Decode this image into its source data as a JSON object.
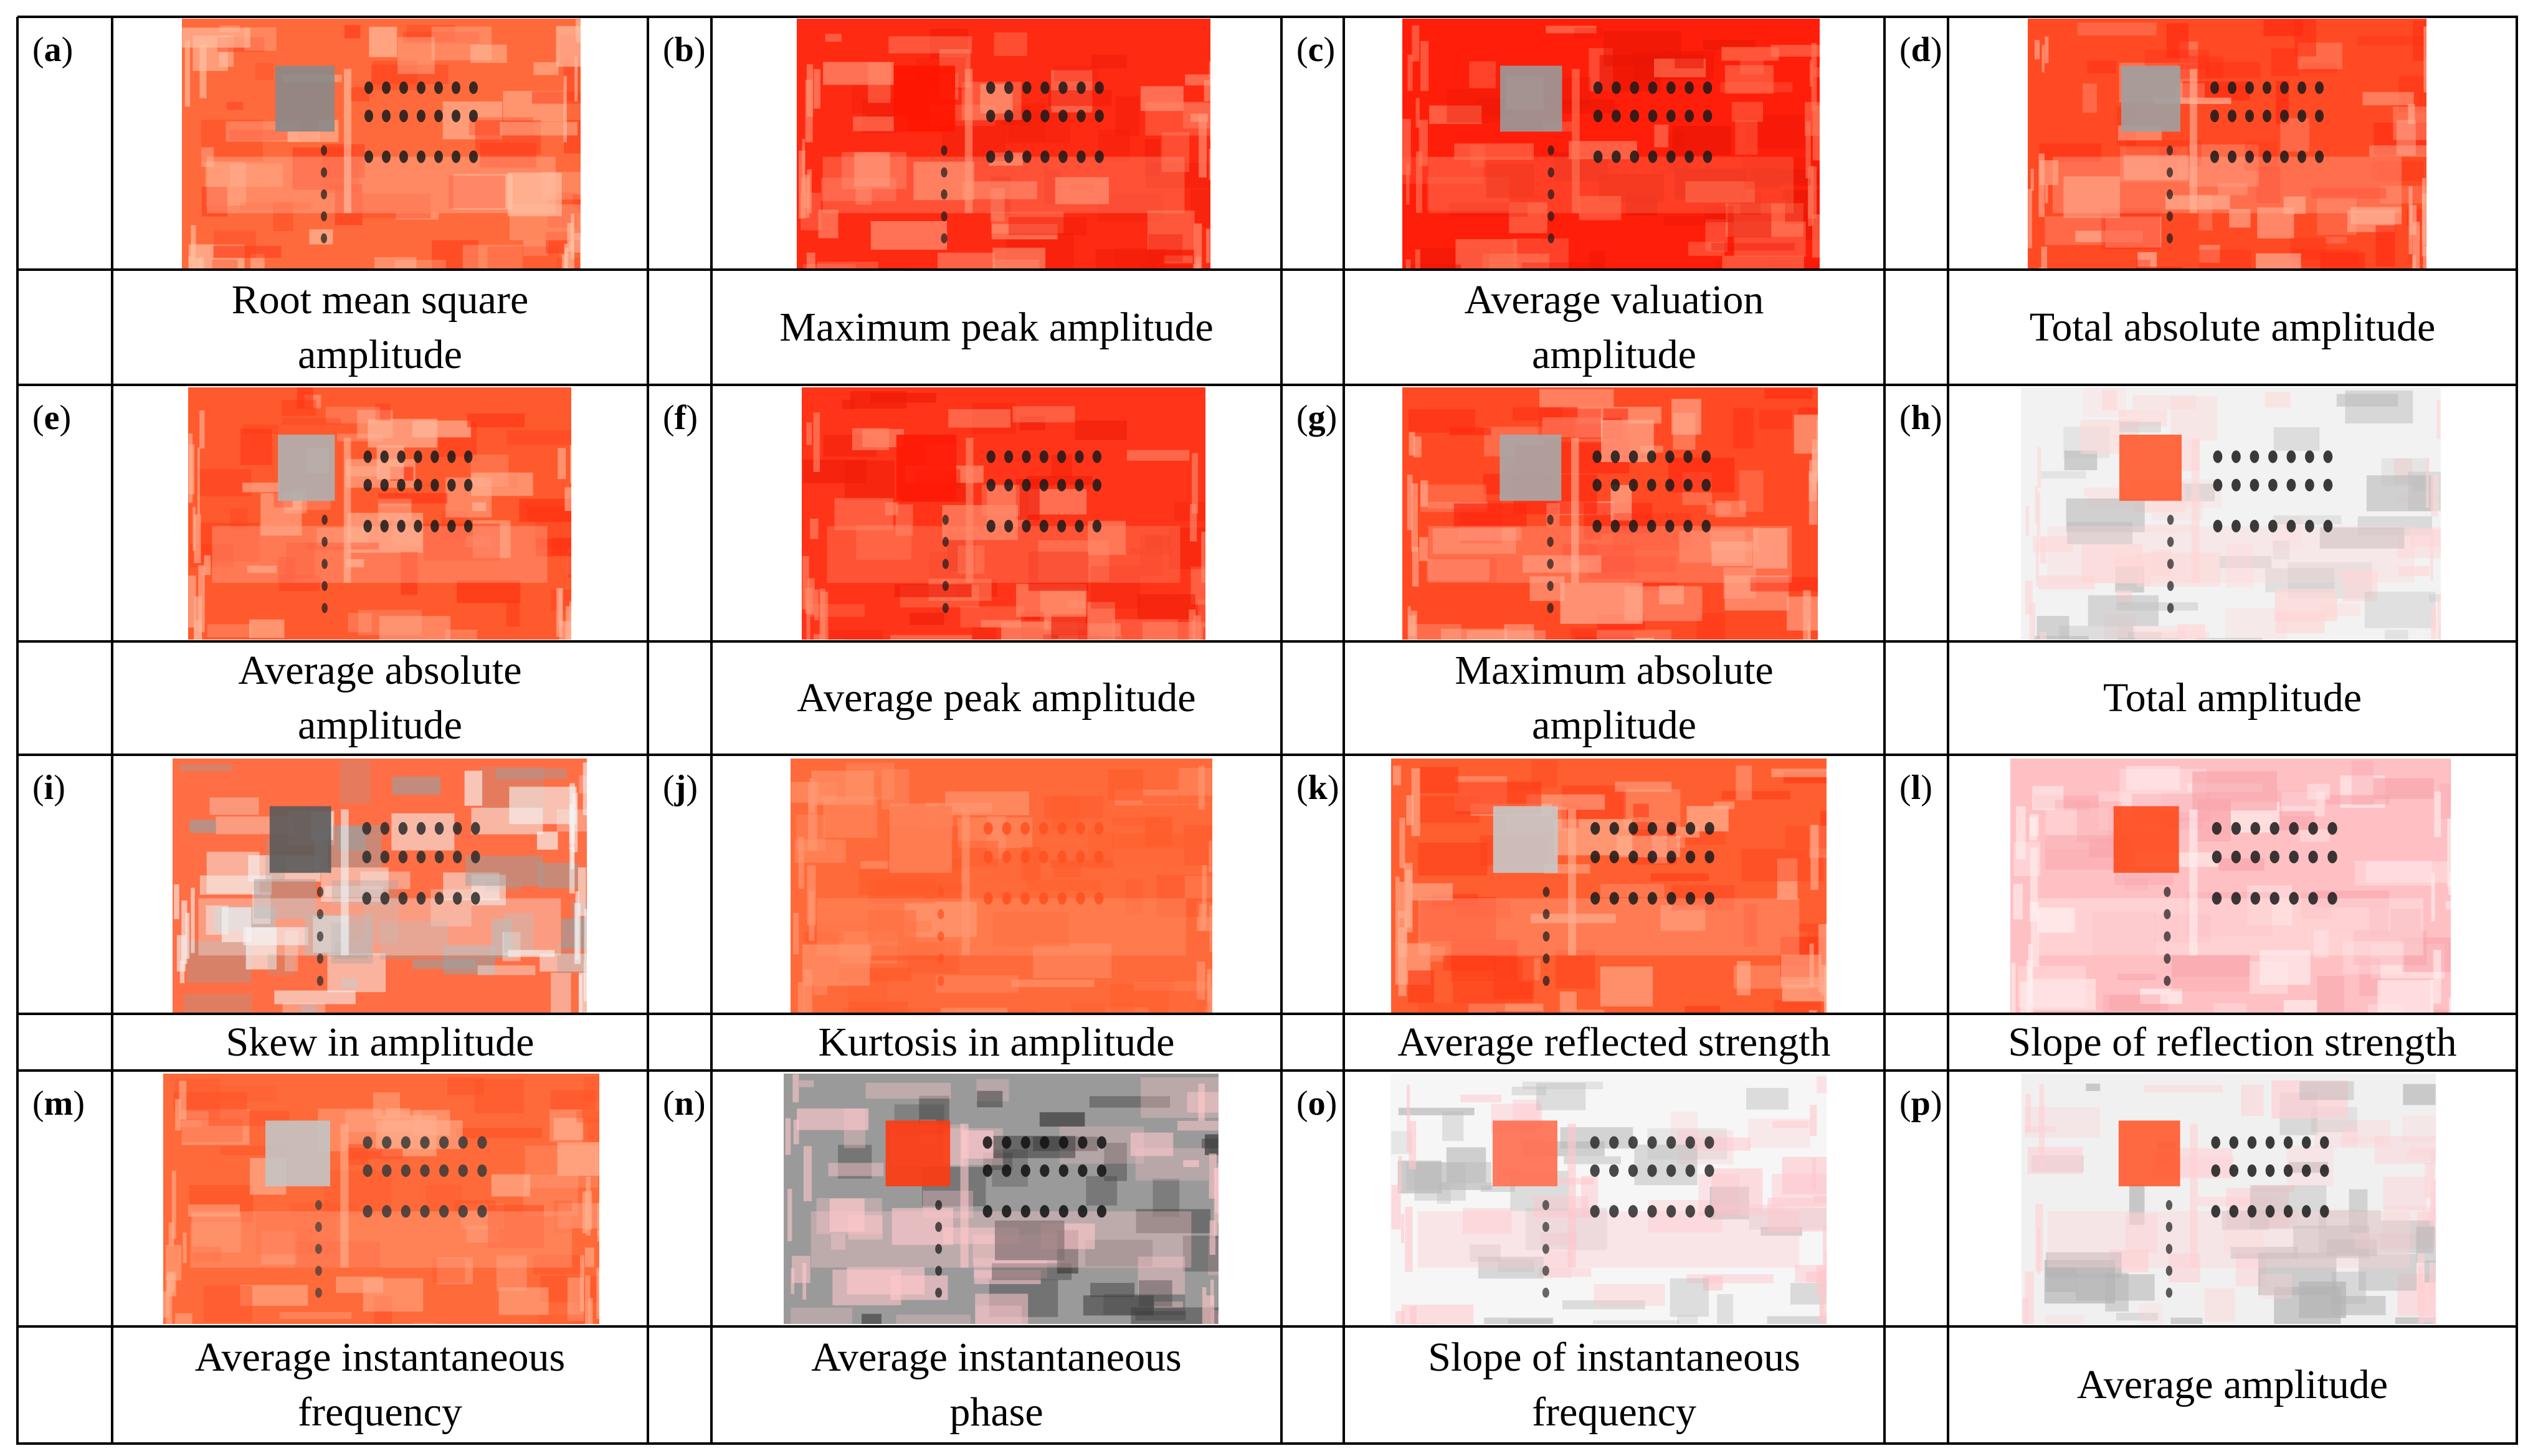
{
  "panels": [
    {
      "tag": "a",
      "caption": "Root mean square\namplitude",
      "colors": {
        "base": "#ff6a3c",
        "dark": "#ff3d1a",
        "light": "#ffc4a8",
        "anomaly": "#8a8a8a",
        "hole": "#1a1a1a"
      }
    },
    {
      "tag": "b",
      "caption": "Maximum peak amplitude",
      "colors": {
        "base": "#ff2a12",
        "dark": "#f01a08",
        "light": "#ff9a7a",
        "anomaly": "#ff1500",
        "hole": "#1a1a1a"
      }
    },
    {
      "tag": "c",
      "caption": "Average valuation\namplitude",
      "colors": {
        "base": "#ff1e0a",
        "dark": "#e81505",
        "light": "#ff7a5a",
        "anomaly": "#9a9a9a",
        "hole": "#1a1a1a"
      }
    },
    {
      "tag": "d",
      "caption": "Total absolute amplitude",
      "colors": {
        "base": "#ff4a24",
        "dark": "#ff2a10",
        "light": "#ffb49a",
        "anomaly": "#a0a0a0",
        "hole": "#1a1a1a"
      }
    },
    {
      "tag": "e",
      "caption": "Average absolute\namplitude",
      "colors": {
        "base": "#ff5a2e",
        "dark": "#ff3212",
        "light": "#ffb89c",
        "anomaly": "#b0b0b0",
        "hole": "#1a1a1a"
      }
    },
    {
      "tag": "f",
      "caption": "Average peak amplitude",
      "colors": {
        "base": "#ff3418",
        "dark": "#f01c08",
        "light": "#ff8e6e",
        "anomaly": "#ff1a06",
        "hole": "#1a1a1a"
      }
    },
    {
      "tag": "g",
      "caption": "Maximum absolute\namplitude",
      "colors": {
        "base": "#ff4a24",
        "dark": "#ff2810",
        "light": "#ffb094",
        "anomaly": "#a8a8a8",
        "hole": "#1a1a1a"
      }
    },
    {
      "tag": "h",
      "caption": "Total amplitude",
      "colors": {
        "base": "#f2f2f2",
        "dark": "#bdbdbd",
        "light": "#ffd6d6",
        "anomaly": "#ff5a2e",
        "hole": "#1a1a1a"
      }
    },
    {
      "tag": "i",
      "caption": "Skew in amplitude",
      "colors": {
        "base": "#ff6e44",
        "dark": "#9e9e9e",
        "light": "#f4f4f4",
        "anomaly": "#5a5a5a",
        "hole": "#2a2a2a"
      }
    },
    {
      "tag": "j",
      "caption": "Kurtosis in amplitude",
      "colors": {
        "base": "#ff6a3a",
        "dark": "#ff5a2a",
        "light": "#ff9a74",
        "anomaly": "#ff7e54",
        "hole": "#ff5020"
      }
    },
    {
      "tag": "k",
      "caption": "Average reflected strength",
      "colors": {
        "base": "#ff5e30",
        "dark": "#ff3a16",
        "light": "#ffb294",
        "anomaly": "#c8c8c8",
        "hole": "#1a1a1a"
      }
    },
    {
      "tag": "l",
      "caption": "Slope of reflection strength",
      "colors": {
        "base": "#ffc0c4",
        "dark": "#f8a6ac",
        "light": "#fff0f0",
        "anomaly": "#ff4a1c",
        "hole": "#1a1a1a"
      }
    },
    {
      "tag": "m",
      "caption": "Average instantaneous\nfrequency",
      "colors": {
        "base": "#ff6a3a",
        "dark": "#ff5226",
        "light": "#ffb090",
        "anomaly": "#c4c4c4",
        "hole": "#3a3a3a"
      }
    },
    {
      "tag": "n",
      "caption": "Average instantaneous\nphase",
      "colors": {
        "base": "#9a9a9a",
        "dark": "#3a3a3a",
        "light": "#ffc8cc",
        "anomaly": "#ff3a10",
        "hole": "#111111"
      }
    },
    {
      "tag": "o",
      "caption": "Slope of instantaneous\nfrequency",
      "colors": {
        "base": "#f6f6f6",
        "dark": "#b8b8b8",
        "light": "#ffc6cc",
        "anomaly": "#ff6e50",
        "hole": "#2a2a2a"
      }
    },
    {
      "tag": "p",
      "caption": "Average amplitude",
      "colors": {
        "base": "#f0f0f0",
        "dark": "#b4b4b4",
        "light": "#ffd0d4",
        "anomaly": "#ff5a2e",
        "hole": "#1a1a1a"
      }
    }
  ]
}
